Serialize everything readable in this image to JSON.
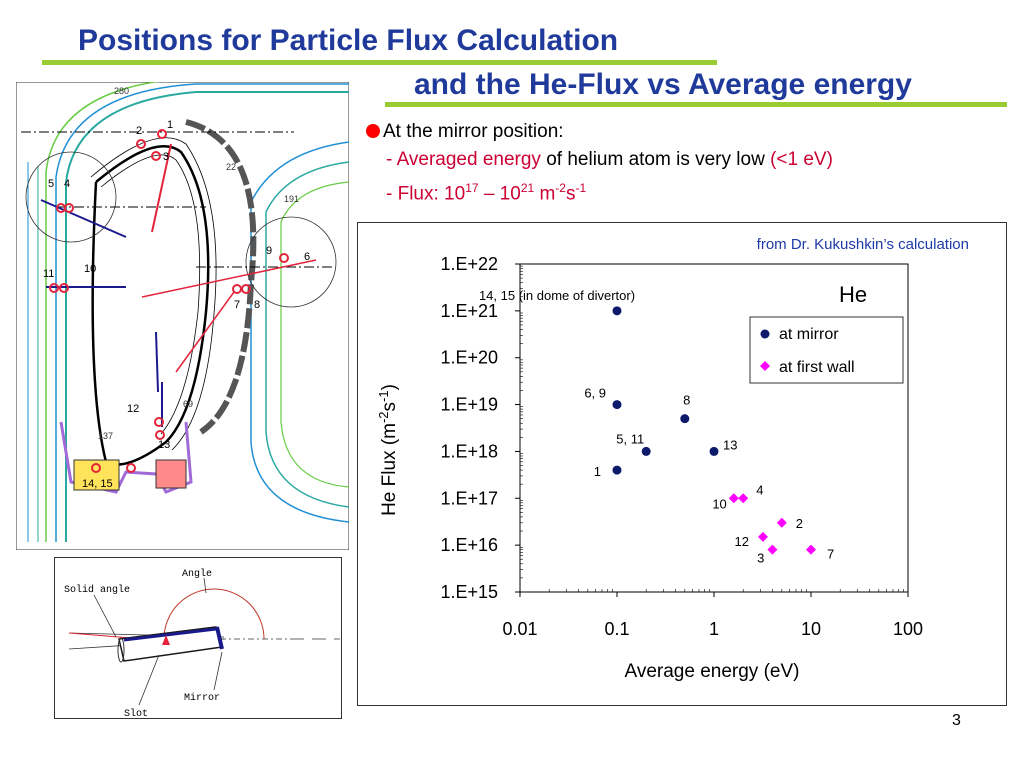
{
  "slide": {
    "title_line1": "Positions for Particle Flux Calculation",
    "title_line2": "and the He-Flux vs Average energy",
    "page_number": "3",
    "colors": {
      "title": "#1f3a9a",
      "underline": "#99cc33",
      "accent_red": "#cc0033"
    }
  },
  "bullets": {
    "heading": "At the mirror position:",
    "line1_dash": "- ",
    "line1_red": "Averaged energy",
    "line1_rest": " of helium atom is very low ",
    "line1_red2": "(<1 eV)",
    "line2_red": "- Flux: 10",
    "line2_exp1": "17",
    "line2_mid": " – 10",
    "line2_exp2": "21",
    "line2_unit": " m",
    "line2_exp3": "-2",
    "line2_s": "s",
    "line2_exp4": "-1"
  },
  "diagram": {
    "markers": [
      "2",
      "1",
      "3",
      "5",
      "4",
      "11",
      "10",
      "9",
      "6",
      "7",
      "8",
      "12",
      "13",
      "14, 15"
    ],
    "angle_labels": [
      "280",
      "22",
      "191",
      "69",
      "137"
    ]
  },
  "inset": {
    "angle": "Angle",
    "solid_angle": "Solid angle",
    "mirror": "Mirror",
    "slot": "Slot"
  },
  "chart_data": {
    "type": "scatter",
    "note": "from Dr. Kukushkin’s calculation",
    "xlabel": "Average energy (eV)",
    "ylabel": "He Flux (m",
    "ylabel_exp1": "-2",
    "ylabel_s": "s",
    "ylabel_exp2": "-1",
    "ylabel_close": ")",
    "x_scale": "log",
    "y_scale": "log",
    "xlim": [
      0.01,
      100
    ],
    "ylim": [
      1000000000000000.0,
      1e+22
    ],
    "x_ticks": [
      "0.01",
      "0.1",
      "1",
      "10",
      "100"
    ],
    "y_ticks": [
      "1.E+15",
      "1.E+16",
      "1.E+17",
      "1.E+18",
      "1.E+19",
      "1.E+20",
      "1.E+21",
      "1.E+22"
    ],
    "legend_title": "He",
    "legend_position": "top-right",
    "series": [
      {
        "name": "at mirror",
        "color": "#0d1a6b",
        "marker": "circle",
        "points": [
          {
            "label": "14, 15 (in dome of divertor)",
            "x": 0.1,
            "y": 1e+21
          },
          {
            "label": "6, 9",
            "x": 0.1,
            "y": 1e+19
          },
          {
            "label": "8",
            "x": 0.5,
            "y": 5e+18
          },
          {
            "label": "5, 11",
            "x": 0.2,
            "y": 1e+18
          },
          {
            "label": "13",
            "x": 1.0,
            "y": 1e+18
          },
          {
            "label": "1",
            "x": 0.1,
            "y": 4e+17
          }
        ]
      },
      {
        "name": "at first wall",
        "color": "#ff00ff",
        "marker": "diamond",
        "points": [
          {
            "label": "10",
            "x": 1.6,
            "y": 1e+17
          },
          {
            "label": "4",
            "x": 2.0,
            "y": 1e+17
          },
          {
            "label": "2",
            "x": 5.0,
            "y": 3e+16
          },
          {
            "label": "12",
            "x": 3.2,
            "y": 1.5e+16
          },
          {
            "label": "3",
            "x": 4.0,
            "y": 8000000000000000.0
          },
          {
            "label": "7",
            "x": 10.0,
            "y": 8000000000000000.0
          }
        ]
      }
    ]
  }
}
